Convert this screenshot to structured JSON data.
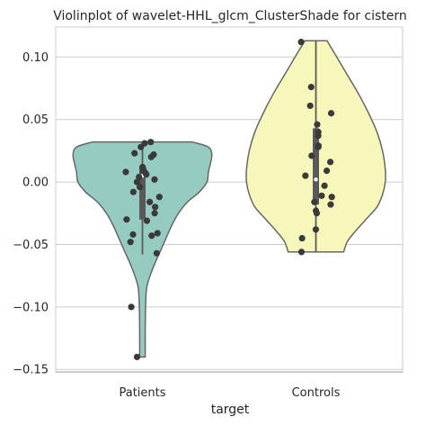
{
  "chart_data": {
    "type": "violin",
    "title": "Violinplot of wavelet-HHL_glcm_ClusterShade for cistern",
    "xlabel": "target",
    "ylabel": "",
    "ylim": [
      -0.152,
      0.124
    ],
    "yticks": [
      {
        "value": 0.1,
        "label": "0.10"
      },
      {
        "value": 0.05,
        "label": "0.05"
      },
      {
        "value": 0.0,
        "label": "0.00"
      },
      {
        "value": -0.05,
        "label": "−0.05"
      },
      {
        "value": -0.1,
        "label": "−0.10"
      },
      {
        "value": -0.15,
        "label": "−0.15"
      }
    ],
    "grid": "horizontal",
    "categories": [
      "Patients",
      "Controls"
    ],
    "series": [
      {
        "category": "Patients",
        "color": "#96cbc1",
        "box": {
          "q1": -0.03,
          "median": 0.005,
          "q3": 0.013,
          "whisker_low": -0.058,
          "whisker_high": 0.032
        },
        "density_profile": [
          [
            0.032,
            0.72
          ],
          [
            0.028,
            0.95
          ],
          [
            0.022,
            1.0
          ],
          [
            0.015,
            0.98
          ],
          [
            0.008,
            0.95
          ],
          [
            0.0,
            0.93
          ],
          [
            -0.008,
            0.82
          ],
          [
            -0.016,
            0.65
          ],
          [
            -0.025,
            0.52
          ],
          [
            -0.035,
            0.42
          ],
          [
            -0.045,
            0.34
          ],
          [
            -0.055,
            0.26
          ],
          [
            -0.065,
            0.18
          ],
          [
            -0.075,
            0.11
          ],
          [
            -0.085,
            0.06
          ],
          [
            -0.1,
            0.045
          ],
          [
            -0.12,
            0.04
          ],
          [
            -0.14,
            0.04
          ]
        ],
        "points": [
          0.032,
          0.031,
          0.028,
          0.023,
          0.022,
          0.02,
          0.012,
          0.01,
          0.009,
          0.008,
          0.007,
          0.006,
          0.004,
          0.002,
          0.0,
          -0.004,
          -0.008,
          -0.012,
          -0.016,
          -0.02,
          -0.025,
          -0.03,
          -0.031,
          -0.041,
          -0.042,
          -0.043,
          -0.048,
          -0.057,
          -0.1,
          -0.14
        ]
      },
      {
        "category": "Controls",
        "color": "#f7f7bb",
        "box": {
          "q1": -0.018,
          "median": 0.002,
          "q3": 0.043,
          "whisker_low": -0.056,
          "whisker_high": 0.113
        },
        "density_profile": [
          [
            0.113,
            0.16
          ],
          [
            0.1,
            0.3
          ],
          [
            0.085,
            0.46
          ],
          [
            0.07,
            0.62
          ],
          [
            0.055,
            0.76
          ],
          [
            0.04,
            0.88
          ],
          [
            0.025,
            0.96
          ],
          [
            0.01,
            1.0
          ],
          [
            0.0,
            1.0
          ],
          [
            -0.01,
            0.96
          ],
          [
            -0.02,
            0.88
          ],
          [
            -0.03,
            0.72
          ],
          [
            -0.04,
            0.56
          ],
          [
            -0.048,
            0.45
          ],
          [
            -0.056,
            0.4
          ]
        ],
        "points": [
          0.112,
          0.076,
          0.061,
          0.055,
          0.046,
          0.04,
          0.037,
          0.029,
          0.028,
          0.021,
          0.016,
          0.009,
          0.005,
          -0.003,
          -0.011,
          -0.012,
          -0.016,
          -0.018,
          -0.023,
          -0.025,
          -0.038,
          -0.045,
          -0.056
        ]
      }
    ]
  }
}
